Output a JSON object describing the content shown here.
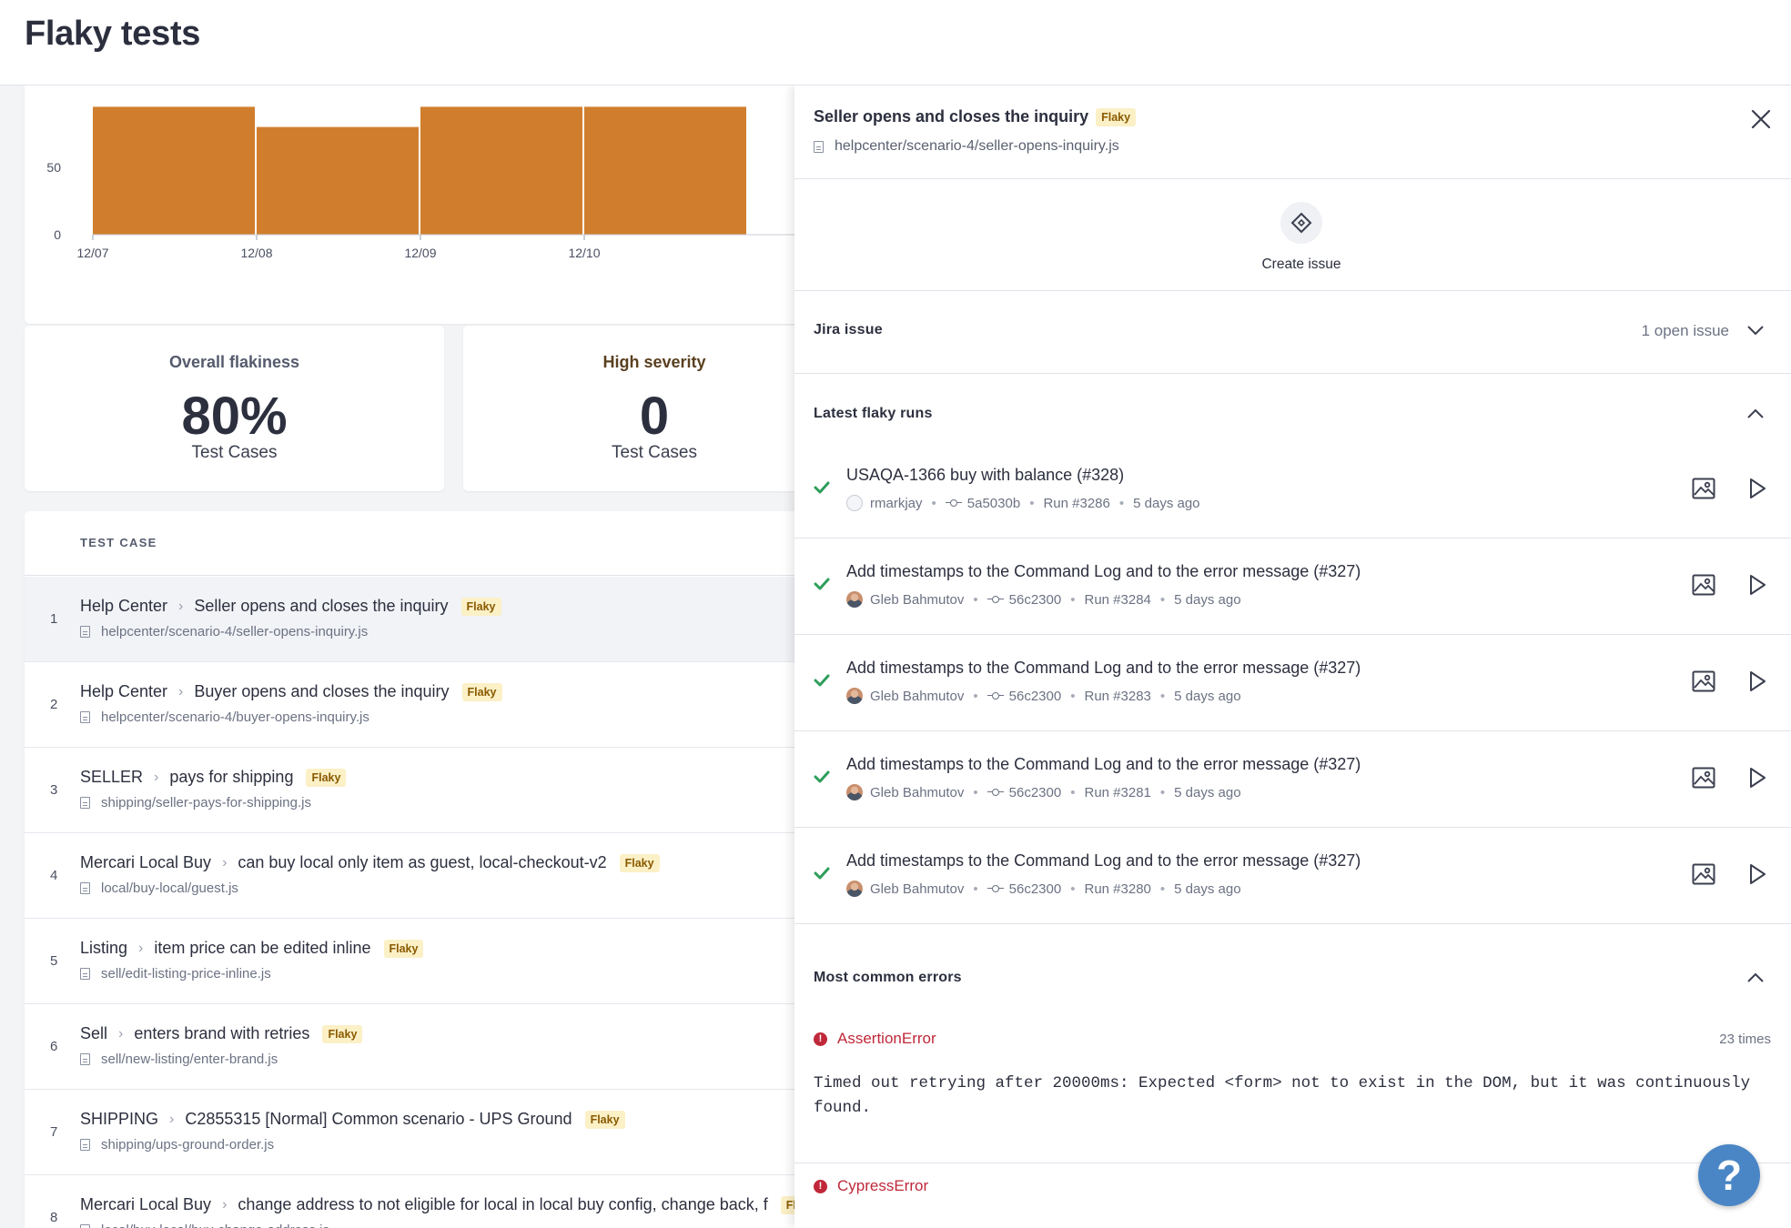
{
  "page": {
    "title": "Flaky tests"
  },
  "chart_data": {
    "type": "bar",
    "categories": [
      "12/07",
      "12/08",
      "12/09",
      "12/10"
    ],
    "values": [
      95,
      80,
      95,
      95
    ],
    "yticks": [
      0,
      50
    ],
    "ylim": [
      0,
      100
    ],
    "color": "#d07e2d"
  },
  "stats": [
    {
      "label": "Overall flakiness",
      "value": "80%",
      "sub": "Test Cases"
    },
    {
      "label": "High severity",
      "value": "0",
      "sub": "Test Cases"
    }
  ],
  "table": {
    "header": "TEST CASE",
    "badge": "Flaky",
    "rows": [
      {
        "num": "1",
        "suite": "Help Center",
        "name": "Seller opens and closes the inquiry",
        "path": "helpcenter/scenario-4/seller-opens-inquiry.js"
      },
      {
        "num": "2",
        "suite": "Help Center",
        "name": "Buyer opens and closes the inquiry",
        "path": "helpcenter/scenario-4/buyer-opens-inquiry.js"
      },
      {
        "num": "3",
        "suite": "SELLER",
        "name": "pays for shipping",
        "path": "shipping/seller-pays-for-shipping.js"
      },
      {
        "num": "4",
        "suite": "Mercari Local Buy",
        "name": "can buy local only item as guest, local-checkout-v2",
        "path": "local/buy-local/guest.js"
      },
      {
        "num": "5",
        "suite": "Listing",
        "name": "item price can be edited inline",
        "path": "sell/edit-listing-price-inline.js"
      },
      {
        "num": "6",
        "suite": "Sell",
        "name": "enters brand with retries",
        "path": "sell/new-listing/enter-brand.js"
      },
      {
        "num": "7",
        "suite": "SHIPPING",
        "name": "C2855315 [Normal] Common scenario - UPS Ground",
        "path": "shipping/ups-ground-order.js"
      },
      {
        "num": "8",
        "suite": "Mercari Local Buy",
        "name": "change address to not eligible for local in local buy config, change back, f",
        "path": "local/buy-local/buy-change-address.js"
      }
    ]
  },
  "drawer": {
    "title": "Seller opens and closes the inquiry",
    "badge": "Flaky",
    "path": "helpcenter/scenario-4/seller-opens-inquiry.js",
    "create_issue": "Create issue",
    "jira": {
      "title": "Jira issue",
      "meta": "1 open issue"
    },
    "latest": {
      "title": "Latest flaky runs",
      "runs": [
        {
          "title": "USAQA-1366 buy with balance (#328)",
          "author": "rmarkjay",
          "commit": "5a5030b",
          "run": "Run #3286",
          "time": "5 days ago"
        },
        {
          "title": "Add timestamps to the Command Log and to the error message (#327)",
          "author": "Gleb Bahmutov",
          "commit": "56c2300",
          "run": "Run #3284",
          "time": "5 days ago"
        },
        {
          "title": "Add timestamps to the Command Log and to the error message (#327)",
          "author": "Gleb Bahmutov",
          "commit": "56c2300",
          "run": "Run #3283",
          "time": "5 days ago"
        },
        {
          "title": "Add timestamps to the Command Log and to the error message (#327)",
          "author": "Gleb Bahmutov",
          "commit": "56c2300",
          "run": "Run #3281",
          "time": "5 days ago"
        },
        {
          "title": "Add timestamps to the Command Log and to the error message (#327)",
          "author": "Gleb Bahmutov",
          "commit": "56c2300",
          "run": "Run #3280",
          "time": "5 days ago"
        }
      ]
    },
    "errors": {
      "title": "Most common errors",
      "items": [
        {
          "name": "AssertionError",
          "count": "23 times",
          "message": "Timed out retrying after 20000ms: Expected <form> not to exist in the DOM, but it was continuously found."
        },
        {
          "name": "CypressError",
          "count": ""
        }
      ]
    }
  },
  "help": {
    "label": "?"
  },
  "colors": {
    "accent": "#d07e2d",
    "success": "#2e9e5b",
    "error": "#c0283a",
    "help": "#4a86c5"
  }
}
